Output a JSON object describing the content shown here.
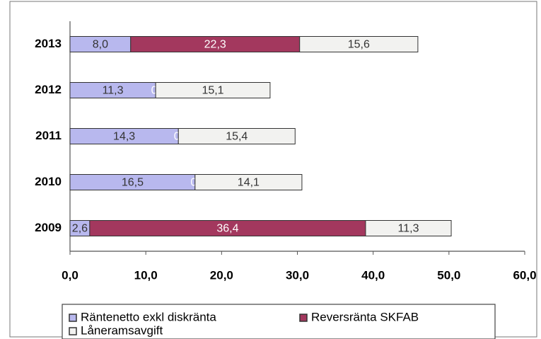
{
  "chart_data": {
    "type": "bar",
    "orientation": "horizontal",
    "stacked": true,
    "categories": [
      "2013",
      "2012",
      "2011",
      "2010",
      "2009"
    ],
    "series": [
      {
        "name": "Räntenetto exkl diskränta",
        "color": "#b8b8ee",
        "values": [
          8.0,
          11.3,
          14.3,
          16.5,
          2.6
        ],
        "value_labels": [
          "8,0",
          "11,3",
          "14,3",
          "16,5",
          "2,6"
        ]
      },
      {
        "name": "Reversränta SKFAB",
        "color": "#a3385e",
        "values": [
          22.3,
          0,
          0,
          0,
          36.4
        ],
        "value_labels": [
          "22,3",
          "0",
          "0",
          "0",
          "36,4"
        ]
      },
      {
        "name": "Låneramsavgift",
        "color": "#f2f2f0",
        "values": [
          15.6,
          15.1,
          15.4,
          14.1,
          11.3
        ],
        "value_labels": [
          "15,6",
          "15,1",
          "15,4",
          "14,1",
          "11,3"
        ]
      }
    ],
    "xlim": [
      0,
      60
    ],
    "xticks": [
      {
        "value": 0,
        "label": "0,0"
      },
      {
        "value": 10,
        "label": "10,0"
      },
      {
        "value": 20,
        "label": "20,0"
      },
      {
        "value": 30,
        "label": "30,0"
      },
      {
        "value": 40,
        "label": "40,0"
      },
      {
        "value": 50,
        "label": "50,0"
      },
      {
        "value": 60,
        "label": "60,0"
      }
    ],
    "legend": "bottom"
  }
}
